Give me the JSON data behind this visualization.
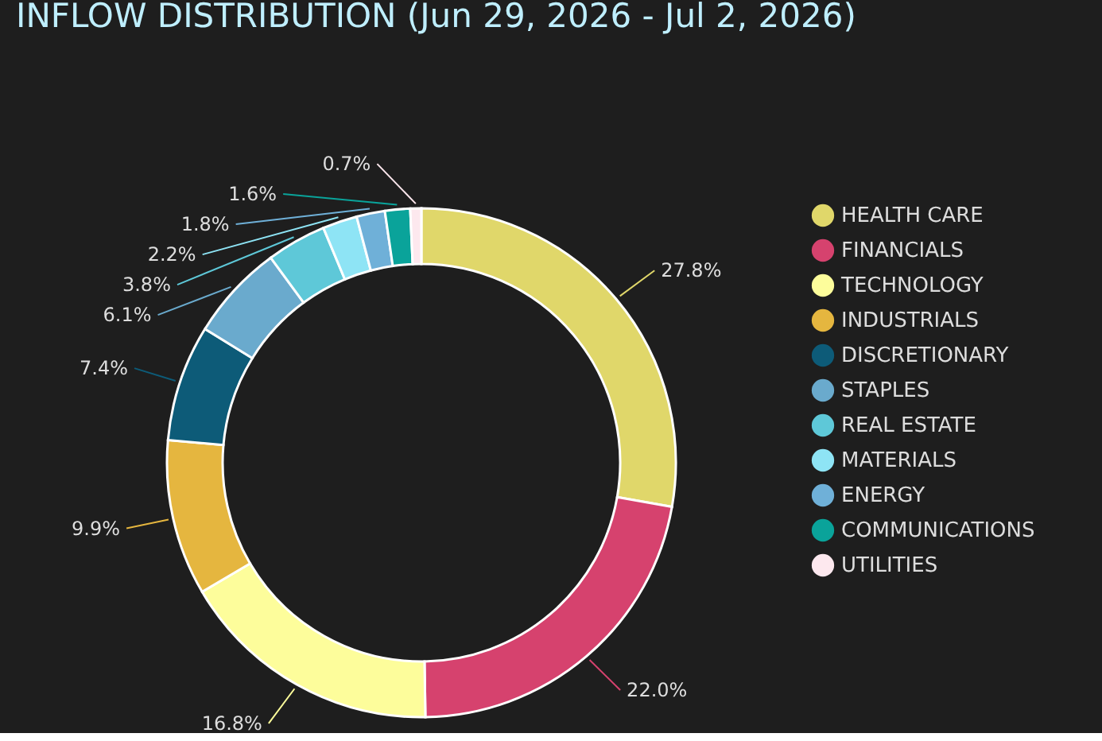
{
  "chart_data": {
    "type": "donut",
    "title": "INFLOW DISTRIBUTION (Jun 29, 2026 - Jul 2, 2026)",
    "categories": [
      "HEALTH CARE",
      "FINANCIALS",
      "TECHNOLOGY",
      "INDUSTRIALS",
      "DISCRETIONARY",
      "STAPLES",
      "REAL ESTATE",
      "MATERIALS",
      "ENERGY",
      "COMMUNICATIONS",
      "UTILITIES"
    ],
    "values": [
      27.8,
      22.0,
      16.8,
      9.9,
      7.4,
      6.1,
      3.8,
      2.2,
      1.8,
      1.6,
      0.7
    ],
    "colors": [
      "#e0d76a",
      "#d6426e",
      "#fdfd9b",
      "#e5b63f",
      "#0d5b78",
      "#6aaacd",
      "#5ec8d8",
      "#8ee4f5",
      "#6fb0d8",
      "#0aa39a",
      "#fde8ee"
    ],
    "value_labels": [
      "27.8%",
      "22.0%",
      "16.8%",
      "9.9%",
      "7.4%",
      "6.1%",
      "3.8%",
      "2.2%",
      "1.8%",
      "1.6%",
      "0.7%"
    ],
    "legend": "right"
  }
}
